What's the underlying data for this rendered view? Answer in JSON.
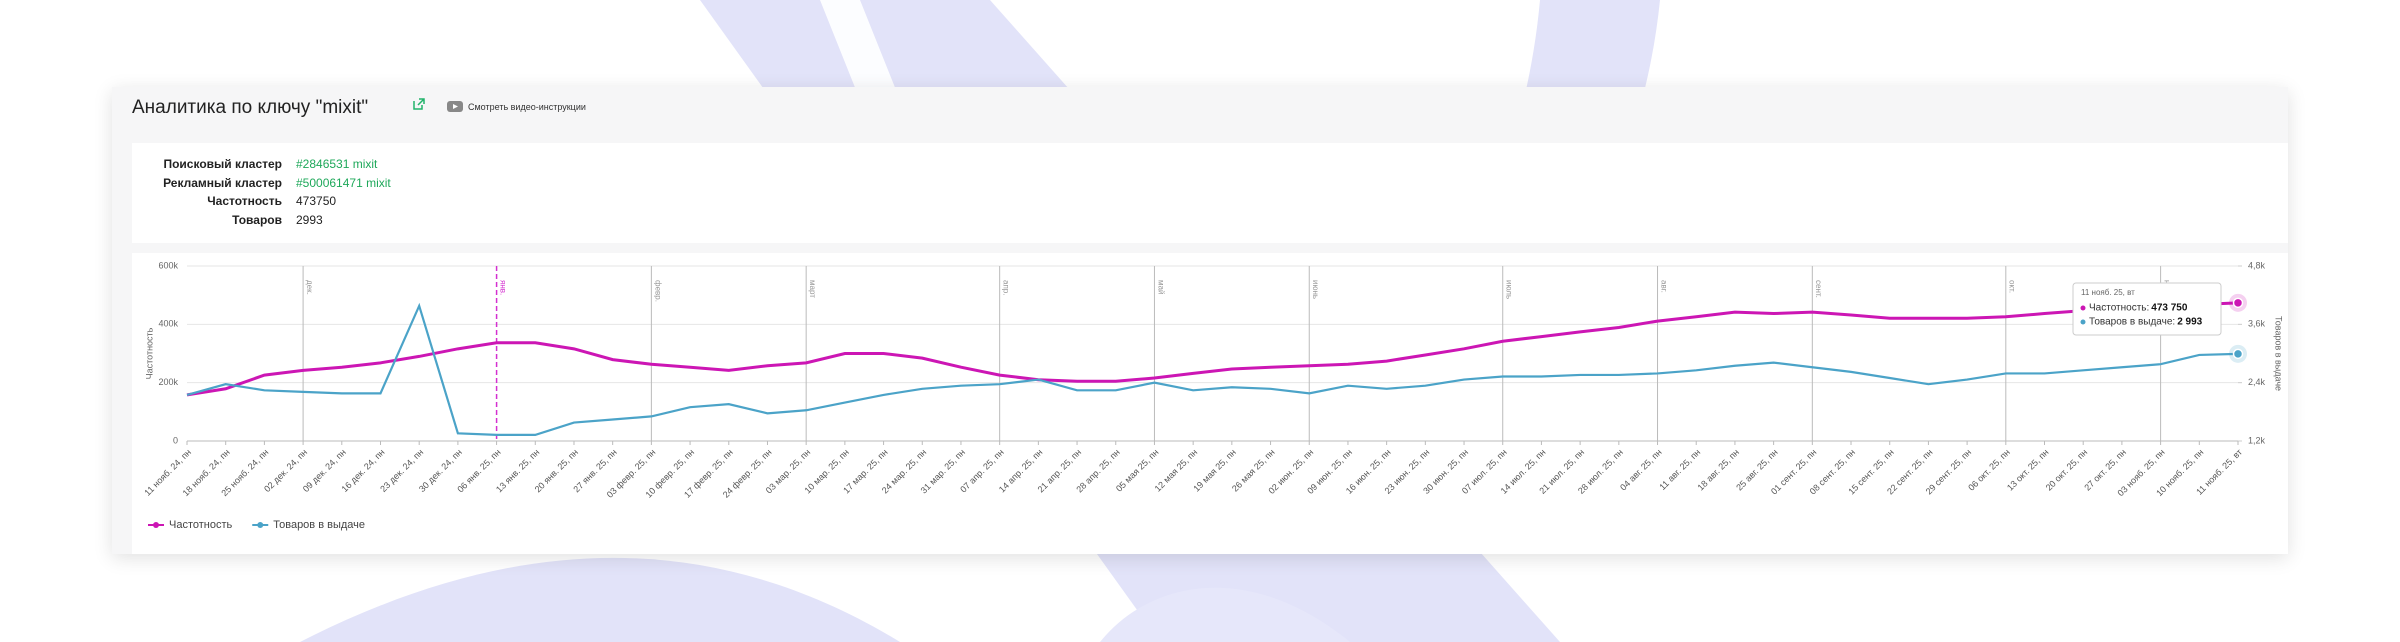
{
  "header": {
    "title": "Аналитика по ключу \"mixit\"",
    "button": "Смотреть видео-инструкции"
  },
  "info": {
    "rows": [
      {
        "label": "Поисковый кластер",
        "value": "#2846531 mixit"
      },
      {
        "label": "Рекламный кластер",
        "value": "#500061471 mixit"
      },
      {
        "label": "Частотность",
        "value": "473750"
      },
      {
        "label": "Товаров",
        "value": "2993"
      }
    ]
  },
  "chart_data": {
    "type": "line",
    "categories": [
      "11 нояб. 24, пн",
      "18 нояб. 24, пн",
      "25 нояб. 24, пн",
      "02 дек. 24, пн",
      "09 дек. 24, пн",
      "16 дек. 24, пн",
      "23 дек. 24, пн",
      "30 дек. 24, пн",
      "06 янв. 25, пн",
      "13 янв. 25, пн",
      "20 янв. 25, пн",
      "27 янв. 25, пн",
      "03 февр. 25, пн",
      "10 февр. 25, пн",
      "17 февр. 25, пн",
      "24 февр. 25, пн",
      "03 мар. 25, пн",
      "10 мар. 25, пн",
      "17 мар. 25, пн",
      "24 мар. 25, пн",
      "31 мар. 25, пн",
      "07 апр. 25, пн",
      "14 апр. 25, пн",
      "21 апр. 25, пн",
      "28 апр. 25, пн",
      "05 мая 25, пн",
      "12 мая 25, пн",
      "19 мая 25, пн",
      "26 мая 25, пн",
      "02 июн. 25, пн",
      "09 июн. 25, пн",
      "16 июн. 25, пн",
      "23 июн. 25, пн",
      "30 июн. 25, пн",
      "07 июл. 25, пн",
      "14 июл. 25, пн",
      "21 июл. 25, пн",
      "28 июл. 25, пн",
      "04 авг. 25, пн",
      "11 авг. 25, пн",
      "18 авг. 25, пн",
      "25 авг. 25, пн",
      "01 сент. 25, пн",
      "08 сент. 25, пн",
      "15 сент. 25, пн",
      "22 сент. 25, пн",
      "29 сент. 25, пн",
      "06 окт. 25, пн",
      "13 окт. 25, пн",
      "20 окт. 25, пн",
      "27 окт. 25, пн",
      "03 нояб. 25, пн",
      "10 нояб. 25, пн",
      "11 нояб. 25, вт"
    ],
    "series": [
      {
        "name": "Частотность",
        "color": "#cc16b4",
        "values": [
          158000,
          179000,
          226000,
          242000,
          253000,
          268000,
          290000,
          316000,
          337000,
          337000,
          316000,
          279000,
          263000,
          253000,
          242000,
          258000,
          268000,
          300000,
          300000,
          284000,
          253000,
          226000,
          210000,
          205000,
          205000,
          216000,
          232000,
          247000,
          253000,
          258000,
          263000,
          274000,
          295000,
          316000,
          342000,
          358000,
          374000,
          389000,
          411000,
          426000,
          442000,
          437000,
          442000,
          432000,
          421000,
          421000,
          421000,
          426000,
          437000,
          447000,
          453000,
          463000,
          468000,
          473750
        ]
      },
      {
        "name": "Товаров в выдаче",
        "color": "#4ba3c8",
        "axis": "y2",
        "values": [
          2148,
          2369,
          2243,
          2211,
          2180,
          2180,
          3980,
          1358,
          1326,
          1326,
          1579,
          1642,
          1706,
          1895,
          1958,
          1769,
          1832,
          1990,
          2148,
          2274,
          2338,
          2369,
          2464,
          2243,
          2243,
          2400,
          2243,
          2306,
          2274,
          2180,
          2338,
          2274,
          2338,
          2464,
          2527,
          2527,
          2559,
          2559,
          2590,
          2654,
          2748,
          2812,
          2717,
          2622,
          2496,
          2369,
          2464,
          2590,
          2590,
          2654,
          2717,
          2780,
          2970,
          2993
        ]
      }
    ],
    "ylabel": "Частотность",
    "y2label": "Товаров в выдаче",
    "ylim": [
      0,
      600000
    ],
    "yticks": [
      {
        "value": 0,
        "label": "0"
      },
      {
        "value": 200000,
        "label": "200k"
      },
      {
        "value": 400000,
        "label": "400k"
      },
      {
        "value": 600000,
        "label": "600k"
      }
    ],
    "y2lim": [
      1200,
      4800
    ],
    "y2ticks": [
      {
        "value": 1200,
        "label": "1,2k"
      },
      {
        "value": 2400,
        "label": "2,4k"
      },
      {
        "value": 3600,
        "label": "3,6k"
      },
      {
        "value": 4800,
        "label": "4,8k"
      }
    ],
    "grid": true,
    "markers": [
      {
        "at": "02 дек. 24, пн",
        "label": "дек."
      },
      {
        "at": "06 янв. 25, пн",
        "label": "янв.",
        "color": "#d42fd0"
      },
      {
        "at": "03 февр. 25, пн",
        "label": "февр."
      },
      {
        "at": "03 мар. 25, пн",
        "label": "март"
      },
      {
        "at": "07 апр. 25, пн",
        "label": "апр."
      },
      {
        "at": "05 мая 25, пн",
        "label": "май"
      },
      {
        "at": "02 июн. 25, пн",
        "label": "июнь"
      },
      {
        "at": "07 июл. 25, пн",
        "label": "июль"
      },
      {
        "at": "04 авг. 25, пн",
        "label": "авг."
      },
      {
        "at": "01 сент. 25, пн",
        "label": "сент."
      },
      {
        "at": "06 окт. 25, пн",
        "label": "окт."
      },
      {
        "at": "03 нояб. 25, пн",
        "label": "нояб."
      }
    ],
    "tooltip": {
      "items": [
        {
          "name": "Частотность:",
          "value": 473750,
          "label": "473 750"
        },
        {
          "name": "Товаров в выдаче:",
          "value": 2993,
          "label": "2 993"
        }
      ]
    },
    "legend": "bottom-left"
  }
}
